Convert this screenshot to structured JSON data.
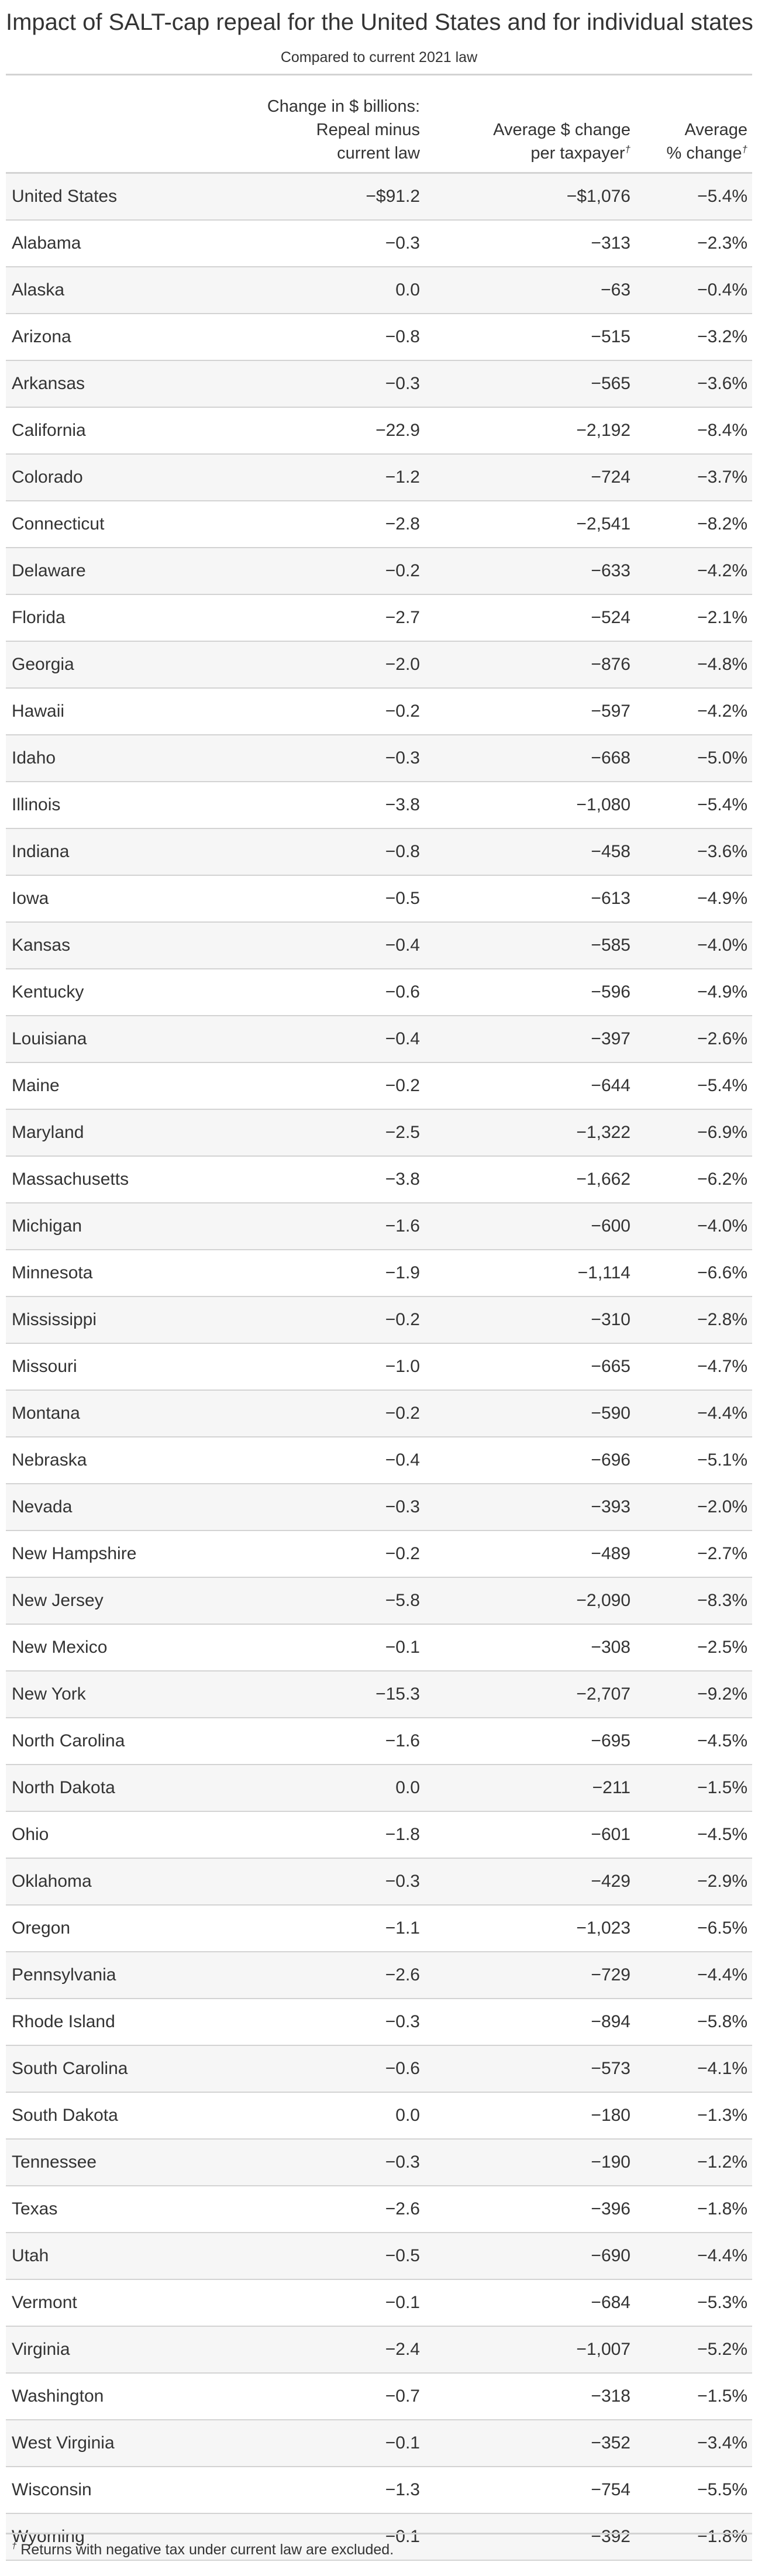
{
  "title": "Impact of SALT-cap repeal for the United States and for individual states",
  "subtitle": "Compared to current 2021 law",
  "columns": {
    "state": "",
    "billions": [
      "Change in $ billions:",
      "Repeal minus",
      "current law"
    ],
    "dollars": [
      "Average $ change",
      "per taxpayer"
    ],
    "percent": [
      "Average",
      "% change"
    ],
    "dagger": "†"
  },
  "rows": [
    [
      "United States",
      "−$91.2",
      "−$1,076",
      "−5.4%"
    ],
    [
      "Alabama",
      "−0.3",
      "−313",
      "−2.3%"
    ],
    [
      "Alaska",
      "0.0",
      "−63",
      "−0.4%"
    ],
    [
      "Arizona",
      "−0.8",
      "−515",
      "−3.2%"
    ],
    [
      "Arkansas",
      "−0.3",
      "−565",
      "−3.6%"
    ],
    [
      "California",
      "−22.9",
      "−2,192",
      "−8.4%"
    ],
    [
      "Colorado",
      "−1.2",
      "−724",
      "−3.7%"
    ],
    [
      "Connecticut",
      "−2.8",
      "−2,541",
      "−8.2%"
    ],
    [
      "Delaware",
      "−0.2",
      "−633",
      "−4.2%"
    ],
    [
      "Florida",
      "−2.7",
      "−524",
      "−2.1%"
    ],
    [
      "Georgia",
      "−2.0",
      "−876",
      "−4.8%"
    ],
    [
      "Hawaii",
      "−0.2",
      "−597",
      "−4.2%"
    ],
    [
      "Idaho",
      "−0.3",
      "−668",
      "−5.0%"
    ],
    [
      "Illinois",
      "−3.8",
      "−1,080",
      "−5.4%"
    ],
    [
      "Indiana",
      "−0.8",
      "−458",
      "−3.6%"
    ],
    [
      "Iowa",
      "−0.5",
      "−613",
      "−4.9%"
    ],
    [
      "Kansas",
      "−0.4",
      "−585",
      "−4.0%"
    ],
    [
      "Kentucky",
      "−0.6",
      "−596",
      "−4.9%"
    ],
    [
      "Louisiana",
      "−0.4",
      "−397",
      "−2.6%"
    ],
    [
      "Maine",
      "−0.2",
      "−644",
      "−5.4%"
    ],
    [
      "Maryland",
      "−2.5",
      "−1,322",
      "−6.9%"
    ],
    [
      "Massachusetts",
      "−3.8",
      "−1,662",
      "−6.2%"
    ],
    [
      "Michigan",
      "−1.6",
      "−600",
      "−4.0%"
    ],
    [
      "Minnesota",
      "−1.9",
      "−1,114",
      "−6.6%"
    ],
    [
      "Mississippi",
      "−0.2",
      "−310",
      "−2.8%"
    ],
    [
      "Missouri",
      "−1.0",
      "−665",
      "−4.7%"
    ],
    [
      "Montana",
      "−0.2",
      "−590",
      "−4.4%"
    ],
    [
      "Nebraska",
      "−0.4",
      "−696",
      "−5.1%"
    ],
    [
      "Nevada",
      "−0.3",
      "−393",
      "−2.0%"
    ],
    [
      "New Hampshire",
      "−0.2",
      "−489",
      "−2.7%"
    ],
    [
      "New Jersey",
      "−5.8",
      "−2,090",
      "−8.3%"
    ],
    [
      "New Mexico",
      "−0.1",
      "−308",
      "−2.5%"
    ],
    [
      "New York",
      "−15.3",
      "−2,707",
      "−9.2%"
    ],
    [
      "North Carolina",
      "−1.6",
      "−695",
      "−4.5%"
    ],
    [
      "North Dakota",
      "0.0",
      "−211",
      "−1.5%"
    ],
    [
      "Ohio",
      "−1.8",
      "−601",
      "−4.5%"
    ],
    [
      "Oklahoma",
      "−0.3",
      "−429",
      "−2.9%"
    ],
    [
      "Oregon",
      "−1.1",
      "−1,023",
      "−6.5%"
    ],
    [
      "Pennsylvania",
      "−2.6",
      "−729",
      "−4.4%"
    ],
    [
      "Rhode Island",
      "−0.3",
      "−894",
      "−5.8%"
    ],
    [
      "South Carolina",
      "−0.6",
      "−573",
      "−4.1%"
    ],
    [
      "South Dakota",
      "0.0",
      "−180",
      "−1.3%"
    ],
    [
      "Tennessee",
      "−0.3",
      "−190",
      "−1.2%"
    ],
    [
      "Texas",
      "−2.6",
      "−396",
      "−1.8%"
    ],
    [
      "Utah",
      "−0.5",
      "−690",
      "−4.4%"
    ],
    [
      "Vermont",
      "−0.1",
      "−684",
      "−5.3%"
    ],
    [
      "Virginia",
      "−2.4",
      "−1,007",
      "−5.2%"
    ],
    [
      "Washington",
      "−0.7",
      "−318",
      "−1.5%"
    ],
    [
      "West Virginia",
      "−0.1",
      "−352",
      "−3.4%"
    ],
    [
      "Wisconsin",
      "−1.3",
      "−754",
      "−5.5%"
    ],
    [
      "Wyoming",
      "−0.1",
      "−392",
      "−1.8%"
    ]
  ],
  "footnote": {
    "mark": "†",
    "text": "Returns with negative tax under current law are excluded."
  }
}
